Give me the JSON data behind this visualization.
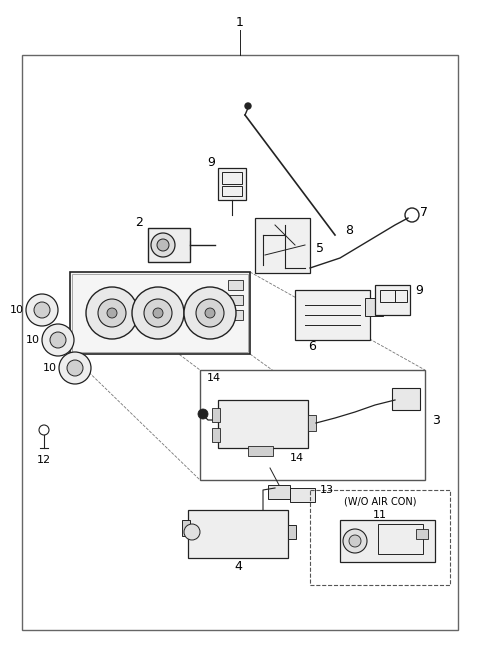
{
  "bg_color": "#ffffff",
  "lc": "#222222",
  "gray": "#888888",
  "lgray": "#cccccc",
  "figsize": [
    4.8,
    6.56
  ],
  "dpi": 100
}
